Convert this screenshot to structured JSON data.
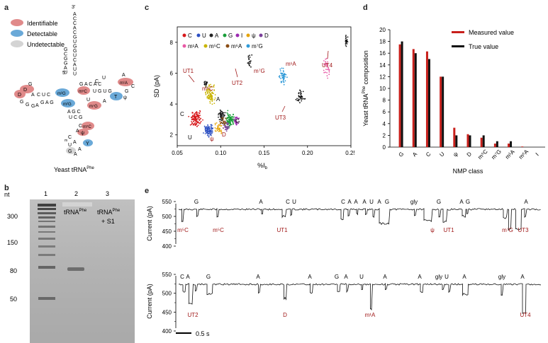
{
  "panels": {
    "a": {
      "letter": "a",
      "legend": [
        {
          "label": "Identifiable",
          "color": "#e08a8a"
        },
        {
          "label": "Detectable",
          "color": "#6aa9d8"
        },
        {
          "label": "Undetectable",
          "color": "#d4d4d4"
        }
      ],
      "acceptor_top": "3′",
      "acceptor_seq": [
        "A",
        "C",
        "C",
        "A",
        "C",
        "G",
        "U",
        "G",
        "G",
        "U",
        "C",
        "A",
        "U",
        "U"
      ],
      "end5": "5′",
      "caption": "Yeast tRNA",
      "caption_sup": "Phe",
      "mod_labels": [
        "D",
        "G",
        "D",
        "m²G",
        "m²G",
        "m²G",
        "m⁵C",
        "m⁷G",
        "T",
        "ψ",
        "m¹A",
        "m⁵C",
        "ψ",
        "Y",
        "Gₘ",
        "Cₘ"
      ]
    },
    "b": {
      "letter": "b",
      "nt_label": "nt",
      "lanes": [
        "1",
        "2",
        "3"
      ],
      "ladder": [
        "300",
        "150",
        "80",
        "50"
      ],
      "lane2_label": "tRNA",
      "lane2_sup": "Phe",
      "lane3_label": "tRNA",
      "lane3_sup": "Phe",
      "lane3_extra": "+ S1"
    },
    "c": {
      "letter": "c",
      "xlabel": "%I",
      "xlabel_sub": "b",
      "ylabel": "SD (pA)",
      "legend": [
        {
          "label": "C",
          "color": "#d7191c"
        },
        {
          "label": "U",
          "color": "#2c4fc2"
        },
        {
          "label": "A",
          "color": "#222222"
        },
        {
          "label": "G",
          "color": "#1a9e3a"
        },
        {
          "label": "I",
          "color": "#9c2ab0"
        },
        {
          "label": "ψ",
          "color": "#e6a40a"
        },
        {
          "label": "D",
          "color": "#7a3f9a"
        },
        {
          "label": "m¹A",
          "color": "#e85aa6"
        },
        {
          "label": "m⁵C",
          "color": "#c9b400"
        },
        {
          "label": "m⁶A",
          "color": "#8a4d14"
        },
        {
          "label": "m⁷G",
          "color": "#2f9ad8"
        }
      ],
      "annotations": {
        "UT1": "UT1",
        "UT2": "UT2",
        "UT3": "UT3",
        "UT4": "UT4",
        "m5C": "m⁵C",
        "m7G": "m⁷G",
        "m1A": "m¹A",
        "C": "C",
        "U": "U",
        "A": "A",
        "G": "G",
        "psi": "ψ",
        "D": "D"
      }
    },
    "d": {
      "letter": "d",
      "ylabel": "Yeast tRNA",
      "ylabel_sup": "Phe",
      "ylabel_tail": " composition",
      "xlabel": "NMP class",
      "legend_measured": "Measured value",
      "legend_true": "True value",
      "measured_color": "#c8201c",
      "true_color": "#111111"
    },
    "e": {
      "letter": "e",
      "ylabel": "Current (pA)",
      "scalebar": "0.5 s",
      "row1_labels": [
        {
          "t": "G",
          "x": 277
        },
        {
          "t": "A",
          "x": 368
        },
        {
          "t": "C",
          "x": 406
        },
        {
          "t": "U",
          "x": 415
        },
        {
          "t": "C",
          "x": 484
        },
        {
          "t": "A",
          "x": 493
        },
        {
          "t": "A",
          "x": 502
        },
        {
          "t": "A",
          "x": 514
        },
        {
          "t": "U",
          "x": 524
        },
        {
          "t": "A",
          "x": 535
        },
        {
          "t": "G",
          "x": 546
        },
        {
          "t": "gly",
          "x": 584
        },
        {
          "t": "G",
          "x": 619
        },
        {
          "t": "A",
          "x": 651
        },
        {
          "t": "G",
          "x": 660
        },
        {
          "t": "A",
          "x": 742
        }
      ],
      "row1_mods": [
        {
          "t": "m⁵C",
          "x": 258
        },
        {
          "t": "m⁵C",
          "x": 308
        },
        {
          "t": "UT1",
          "x": 398
        },
        {
          "t": "ψ",
          "x": 610
        },
        {
          "t": "UT1",
          "x": 633
        },
        {
          "t": "m⁷G",
          "x": 716
        },
        {
          "t": "UT3",
          "x": 738
        }
      ],
      "row2_labels": [
        {
          "t": "C",
          "x": 257
        },
        {
          "t": "A",
          "x": 265
        },
        {
          "t": "G",
          "x": 294
        },
        {
          "t": "A",
          "x": 364
        },
        {
          "t": "A",
          "x": 437
        },
        {
          "t": "G",
          "x": 475
        },
        {
          "t": "A",
          "x": 488
        },
        {
          "t": "U",
          "x": 510
        },
        {
          "t": "A",
          "x": 543
        },
        {
          "t": "A",
          "x": 592
        },
        {
          "t": "gly",
          "x": 619
        },
        {
          "t": "U",
          "x": 630
        },
        {
          "t": "A",
          "x": 655
        },
        {
          "t": "gly",
          "x": 708
        },
        {
          "t": "A",
          "x": 737
        }
      ],
      "row2_mods": [
        {
          "t": "UT2",
          "x": 272
        },
        {
          "t": "D",
          "x": 402
        },
        {
          "t": "m¹A",
          "x": 522
        },
        {
          "t": "UT4",
          "x": 741
        }
      ]
    }
  },
  "chart_data": [
    {
      "type": "scatter",
      "title": "",
      "xlabel": "%Ib",
      "ylabel": "SD (pA)",
      "xlim": [
        0.05,
        0.25
      ],
      "ylim": [
        1.3,
        9.0
      ],
      "xticks": [
        0.05,
        0.1,
        0.15,
        0.2,
        0.25
      ],
      "yticks": [
        2,
        4,
        6,
        8
      ],
      "series": [
        {
          "name": "C",
          "color": "#d7191c",
          "center": [
            0.072,
            3.05
          ],
          "spread": [
            0.006,
            0.45
          ],
          "n": 120
        },
        {
          "name": "U",
          "color": "#2c4fc2",
          "center": [
            0.087,
            2.3
          ],
          "spread": [
            0.005,
            0.3
          ],
          "n": 90
        },
        {
          "name": "A",
          "color": "#222222",
          "center": [
            0.101,
            3.25
          ],
          "spread": [
            0.004,
            0.35
          ],
          "n": 60
        },
        {
          "name": "G",
          "color": "#1a9e3a",
          "center": [
            0.111,
            2.95
          ],
          "spread": [
            0.005,
            0.4
          ],
          "n": 100
        },
        {
          "name": "I",
          "color": "#9c2ab0",
          "center": [
            0.118,
            2.9
          ],
          "spread": [
            0.003,
            0.3
          ],
          "n": 30
        },
        {
          "name": "ψ",
          "color": "#e6a40a",
          "center": [
            0.098,
            2.4
          ],
          "spread": [
            0.004,
            0.35
          ],
          "n": 40
        },
        {
          "name": "D",
          "color": "#7a3f9a",
          "center": [
            0.107,
            2.55
          ],
          "spread": [
            0.003,
            0.3
          ],
          "n": 30
        },
        {
          "name": "m¹A",
          "color": "#e85aa6",
          "center": [
            0.222,
            6.4
          ],
          "spread": [
            0.004,
            0.6
          ],
          "n": 30
        },
        {
          "name": "m⁵C",
          "color": "#c9b400",
          "center": [
            0.088,
            4.7
          ],
          "spread": [
            0.005,
            0.6
          ],
          "n": 90
        },
        {
          "name": "m⁶A",
          "color": "#8a4d14",
          "center": [
            0.103,
            2.9
          ],
          "spread": [
            0.004,
            0.25
          ],
          "n": 25
        },
        {
          "name": "m⁷G",
          "color": "#2f9ad8",
          "center": [
            0.172,
            5.8
          ],
          "spread": [
            0.004,
            0.5
          ],
          "n": 50
        },
        {
          "name": "UT1",
          "color": "#111111",
          "center": [
            0.083,
            5.3
          ],
          "spread": [
            0.002,
            0.2
          ],
          "n": 15
        },
        {
          "name": "UT2",
          "color": "#111111",
          "center": [
            0.133,
            6.8
          ],
          "spread": [
            0.002,
            0.4
          ],
          "n": 20
        },
        {
          "name": "UT3",
          "color": "#111111",
          "center": [
            0.192,
            4.5
          ],
          "spread": [
            0.004,
            0.4
          ],
          "n": 40
        },
        {
          "name": "UT4",
          "color": "#111111",
          "center": [
            0.245,
            8.1
          ],
          "spread": [
            0.002,
            0.3
          ],
          "n": 25
        }
      ]
    },
    {
      "type": "bar",
      "title": "",
      "xlabel": "NMP class",
      "ylabel": "Yeast tRNAPhe composition",
      "ylim": [
        0,
        20
      ],
      "yticks": [
        0,
        2,
        4,
        6,
        8,
        10,
        12,
        14,
        16,
        18,
        20
      ],
      "categories": [
        "G",
        "A",
        "C",
        "U",
        "ψ",
        "D",
        "m⁵C",
        "m⁷G",
        "m¹A",
        "m⁶A",
        "I"
      ],
      "series": [
        {
          "name": "Measured value",
          "values": [
            17.5,
            16.7,
            16.3,
            12.0,
            3.3,
            2.2,
            1.6,
            0.6,
            0.6,
            0.1,
            0.0
          ]
        },
        {
          "name": "True value",
          "values": [
            18.0,
            16.0,
            15.0,
            12.0,
            2.0,
            2.0,
            2.0,
            1.0,
            1.0,
            0.0,
            0.0
          ]
        }
      ]
    }
  ]
}
